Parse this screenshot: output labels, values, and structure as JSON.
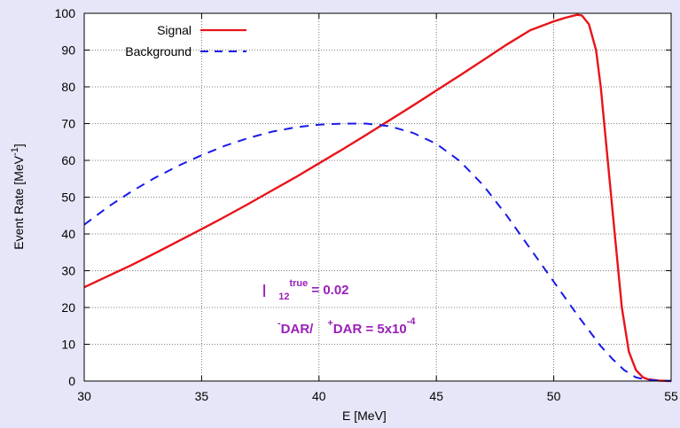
{
  "chart_data": {
    "type": "line",
    "xlabel": "E   [MeV]",
    "ylabel": "Event Rate [MeV",
    "ylabel_sup": "-1",
    "ylabel_end": "]",
    "xlim": [
      30,
      55
    ],
    "ylim": [
      0,
      100
    ],
    "xticks": [
      30,
      35,
      40,
      45,
      50,
      55
    ],
    "yticks": [
      0,
      10,
      20,
      30,
      40,
      50,
      60,
      70,
      80,
      90,
      100
    ],
    "grid": true,
    "legend_position": "top-left",
    "series": [
      {
        "name": "Signal",
        "style": "solid",
        "color": "#e8141a",
        "x": [
          30,
          31,
          32,
          33,
          34,
          35,
          36,
          37,
          38,
          39,
          40,
          41,
          42,
          43,
          44,
          45,
          46,
          47,
          48,
          49,
          50,
          50.5,
          51,
          51.2,
          51.5,
          51.8,
          52,
          52.3,
          52.6,
          52.9,
          53.2,
          53.5,
          53.8,
          54,
          54.5,
          55
        ],
        "y": [
          25.5,
          28.5,
          31.5,
          34.7,
          38,
          41.3,
          44.7,
          48.2,
          51.8,
          55.4,
          59.2,
          63,
          66.9,
          70.9,
          74.9,
          79,
          83.1,
          87.3,
          91.5,
          95.4,
          97.8,
          98.8,
          99.6,
          99.4,
          97,
          90,
          80,
          60,
          40,
          20,
          8,
          3,
          1,
          0.5,
          0.1,
          0
        ]
      },
      {
        "name": "Background",
        "style": "dashed",
        "color": "#1a1ae8",
        "x": [
          30,
          31,
          32,
          33,
          34,
          35,
          36,
          37,
          38,
          39,
          40,
          41,
          42,
          43,
          44,
          45,
          46,
          47,
          48,
          49,
          50,
          51,
          52,
          52.5,
          53,
          53.5,
          54,
          55
        ],
        "y": [
          42.5,
          47.3,
          51.5,
          55.2,
          58.5,
          61.4,
          64,
          66.1,
          67.8,
          69,
          69.7,
          70,
          70,
          69.3,
          67.5,
          64.5,
          59.8,
          53.2,
          45,
          36,
          27,
          18,
          9.5,
          6,
          3,
          1,
          0.3,
          0
        ]
      }
    ],
    "annotations": [
      {
        "main": "|",
        "sub": "12",
        "sup_after": "true",
        "rest": " = 0.02"
      },
      {
        "sup1": "-",
        "part1": "DAR/",
        "sup2": "+",
        "part2": "DAR = 5x10",
        "sup3": "-4"
      }
    ]
  }
}
